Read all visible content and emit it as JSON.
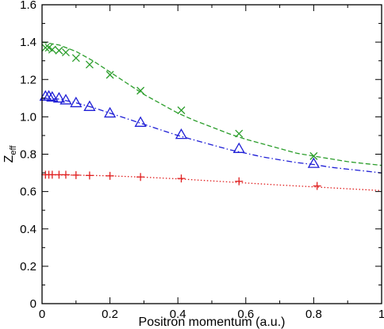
{
  "chart_data": {
    "type": "scatter",
    "title": "",
    "xlabel": "Positron momentum (a.u.)",
    "ylabel_main": "Z",
    "ylabel_sub": "eff",
    "xlim": [
      0,
      1
    ],
    "ylim": [
      0,
      1.6
    ],
    "xticks": [
      0,
      0.2,
      0.4,
      0.6,
      0.8,
      1
    ],
    "xtick_labels": [
      "0",
      "0.2",
      "0.4",
      "0.6",
      "0.8",
      "1"
    ],
    "yticks": [
      0,
      0.2,
      0.4,
      0.6,
      0.8,
      1.0,
      1.2,
      1.4,
      1.6
    ],
    "ytick_labels": [
      "0",
      "0.2",
      "0.4",
      "0.6",
      "0.8",
      "1.0",
      "1.2",
      "1.4",
      "1.6"
    ],
    "grid": false,
    "legend": "none",
    "series": [
      {
        "marker": "x",
        "color": "#2a9d2a",
        "x": [
          0.01,
          0.02,
          0.03,
          0.05,
          0.07,
          0.1,
          0.14,
          0.2,
          0.29,
          0.41,
          0.58,
          0.8
        ],
        "y": [
          1.37,
          1.37,
          1.36,
          1.355,
          1.345,
          1.315,
          1.28,
          1.225,
          1.14,
          1.035,
          0.91,
          0.79
        ]
      },
      {
        "marker": "triangle",
        "color": "#1f1fd6",
        "x": [
          0.01,
          0.02,
          0.03,
          0.05,
          0.07,
          0.1,
          0.14,
          0.2,
          0.29,
          0.41,
          0.58,
          0.8
        ],
        "y": [
          1.11,
          1.11,
          1.105,
          1.1,
          1.09,
          1.075,
          1.055,
          1.02,
          0.97,
          0.905,
          0.83,
          0.75
        ]
      },
      {
        "marker": "plus",
        "color": "#e02020",
        "x": [
          0.01,
          0.02,
          0.03,
          0.05,
          0.07,
          0.1,
          0.14,
          0.2,
          0.29,
          0.41,
          0.58,
          0.81
        ],
        "y": [
          0.69,
          0.69,
          0.69,
          0.69,
          0.69,
          0.688,
          0.686,
          0.684,
          0.678,
          0.67,
          0.655,
          0.63
        ]
      }
    ],
    "curves": [
      {
        "style": "dashed",
        "color": "#2a9d2a",
        "x": [
          0,
          0.05,
          0.1,
          0.15,
          0.2,
          0.25,
          0.3,
          0.35,
          0.4,
          0.45,
          0.5,
          0.55,
          0.6,
          0.65,
          0.7,
          0.75,
          0.8,
          0.85,
          0.9,
          0.95,
          1.0
        ],
        "y": [
          1.4,
          1.385,
          1.35,
          1.3,
          1.24,
          1.18,
          1.12,
          1.07,
          1.02,
          0.98,
          0.945,
          0.91,
          0.88,
          0.855,
          0.83,
          0.805,
          0.79,
          0.775,
          0.76,
          0.75,
          0.74
        ]
      },
      {
        "style": "dashdot",
        "color": "#1f1fd6",
        "x": [
          0,
          0.05,
          0.1,
          0.15,
          0.2,
          0.25,
          0.3,
          0.35,
          0.4,
          0.45,
          0.5,
          0.55,
          0.6,
          0.65,
          0.7,
          0.75,
          0.8,
          0.85,
          0.9,
          0.95,
          1.0
        ],
        "y": [
          1.1,
          1.095,
          1.075,
          1.05,
          1.02,
          0.99,
          0.96,
          0.93,
          0.9,
          0.875,
          0.85,
          0.825,
          0.805,
          0.785,
          0.77,
          0.755,
          0.745,
          0.73,
          0.72,
          0.71,
          0.7
        ]
      },
      {
        "style": "dotted",
        "color": "#e02020",
        "x": [
          0,
          0.1,
          0.2,
          0.3,
          0.4,
          0.5,
          0.6,
          0.7,
          0.8,
          0.9,
          1.0
        ],
        "y": [
          0.69,
          0.688,
          0.684,
          0.677,
          0.668,
          0.657,
          0.646,
          0.635,
          0.625,
          0.615,
          0.605
        ]
      }
    ]
  }
}
